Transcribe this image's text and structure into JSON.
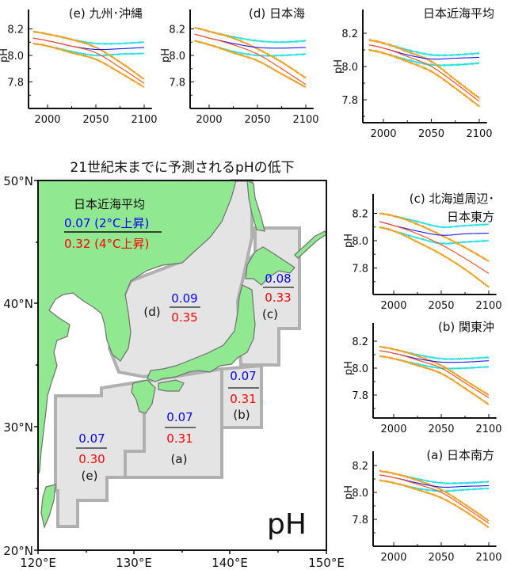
{
  "colors": {
    "land": "#90e890",
    "sea_region": "#e4e4e4",
    "region_border": "#b0b0b0",
    "coast": "#707070",
    "warming_2c": "#0000ff",
    "warming_4c": "#ff0000",
    "series_2c_mean": "#1a1aff",
    "series_2c_range": "#22e0e0",
    "series_4c_mean": "#ff4a1a",
    "series_4c_range": "#f0a020"
  },
  "map": {
    "title": "21世紀末までに予測されるpHの低下",
    "variable_label": "pH",
    "lat_labels": [
      "50°N",
      "40°N",
      "30°N",
      "20°N"
    ],
    "lon_labels": [
      "120°E",
      "130°E",
      "140°E",
      "150°E"
    ],
    "legend": {
      "title": "日本近海平均",
      "value_2c": "0.07 (2°C上昇)",
      "value_4c": "0.32 (4°C上昇)"
    },
    "regions": [
      {
        "id": "d",
        "label": "(d)",
        "value_2c": "0.09",
        "value_4c": "0.35"
      },
      {
        "id": "c",
        "label": "(c)",
        "value_2c": "0.08",
        "value_4c": "0.33"
      },
      {
        "id": "b",
        "label": "(b)",
        "value_2c": "0.07",
        "value_4c": "0.31"
      },
      {
        "id": "a",
        "label": "(a)",
        "value_2c": "0.07",
        "value_4c": "0.31"
      },
      {
        "id": "e",
        "label": "(e)",
        "value_2c": "0.07",
        "value_4c": "0.30"
      }
    ]
  },
  "chart_data": [
    {
      "id": "e",
      "type": "line",
      "title": "(e) 九州･沖縄",
      "title_line2": "",
      "ylabel": "pH",
      "x_ticks": [
        "2000",
        "2050",
        "2100"
      ],
      "y_ticks": [
        "8.2",
        "8.0",
        "7.8"
      ],
      "xlim": [
        1980,
        2108
      ],
      "ylim": [
        7.6,
        8.32
      ],
      "x": [
        1985,
        2000,
        2025,
        2050,
        2075,
        2100
      ],
      "series": [
        {
          "key": "lo2",
          "values": [
            8.09,
            8.07,
            8.03,
            8.0,
            8.01,
            8.015
          ]
        },
        {
          "key": "up2",
          "values": [
            8.18,
            8.16,
            8.12,
            8.09,
            8.09,
            8.1
          ]
        },
        {
          "key": "lo4",
          "values": [
            8.09,
            8.07,
            8.02,
            7.97,
            7.87,
            7.76
          ]
        },
        {
          "key": "up4",
          "values": [
            8.18,
            8.16,
            8.12,
            8.06,
            7.95,
            7.82
          ]
        },
        {
          "key": "mean2",
          "values": [
            8.13,
            8.11,
            8.07,
            8.045,
            8.05,
            8.06
          ]
        },
        {
          "key": "mean4",
          "values": [
            8.13,
            8.11,
            8.07,
            8.02,
            7.91,
            7.79
          ]
        }
      ]
    },
    {
      "id": "d",
      "type": "line",
      "title": "(d) 日本海",
      "title_line2": "",
      "ylabel": "pH",
      "x_ticks": [
        "2000",
        "2050",
        "2100"
      ],
      "y_ticks": [
        "8.2",
        "8.0",
        "7.8"
      ],
      "xlim": [
        1980,
        2108
      ],
      "ylim": [
        7.6,
        8.32
      ],
      "x": [
        1985,
        2000,
        2025,
        2050,
        2075,
        2100
      ],
      "series": [
        {
          "key": "lo2",
          "values": [
            8.11,
            8.08,
            8.03,
            8.0,
            8.0,
            8.01
          ]
        },
        {
          "key": "up2",
          "values": [
            8.21,
            8.18,
            8.14,
            8.11,
            8.1,
            8.11
          ]
        },
        {
          "key": "lo4",
          "values": [
            8.11,
            8.08,
            8.02,
            7.96,
            7.86,
            7.76
          ]
        },
        {
          "key": "up4",
          "values": [
            8.21,
            8.18,
            8.13,
            8.05,
            7.95,
            7.83
          ]
        },
        {
          "key": "mean2",
          "values": [
            8.16,
            8.13,
            8.09,
            8.06,
            8.055,
            8.06
          ]
        },
        {
          "key": "mean4",
          "values": [
            8.16,
            8.13,
            8.08,
            8.01,
            7.9,
            7.78
          ]
        }
      ]
    },
    {
      "id": "avg",
      "type": "line",
      "title": "日本近海平均",
      "title_line2": "",
      "ylabel": "pH",
      "x_ticks": [
        "2000",
        "2050",
        "2100"
      ],
      "y_ticks": [
        "8.2",
        "8.0",
        "7.8"
      ],
      "xlim": [
        1980,
        2108
      ],
      "ylim": [
        7.68,
        8.27
      ],
      "x": [
        1985,
        2000,
        2025,
        2050,
        2075,
        2100
      ],
      "series": [
        {
          "key": "lo2",
          "values": [
            8.1,
            8.08,
            8.04,
            8.01,
            8.01,
            8.02
          ]
        },
        {
          "key": "up2",
          "values": [
            8.16,
            8.14,
            8.1,
            8.07,
            8.07,
            8.08
          ]
        },
        {
          "key": "lo4",
          "values": [
            8.1,
            8.08,
            8.03,
            7.97,
            7.87,
            7.76
          ]
        },
        {
          "key": "up4",
          "values": [
            8.16,
            8.14,
            8.09,
            8.03,
            7.92,
            7.81
          ]
        },
        {
          "key": "mean2",
          "values": [
            8.13,
            8.11,
            8.07,
            8.045,
            8.05,
            8.055
          ]
        },
        {
          "key": "mean4",
          "values": [
            8.13,
            8.11,
            8.06,
            8.0,
            7.9,
            7.79
          ]
        }
      ]
    },
    {
      "id": "c",
      "type": "line",
      "title": "(c) 北海道周辺･",
      "title_line2": "日本東方",
      "ylabel": "pH",
      "x_ticks": [
        "2000",
        "2050",
        "2100"
      ],
      "y_ticks": [
        "8.2",
        "8.0",
        "7.8"
      ],
      "xlim": [
        1980,
        2108
      ],
      "ylim": [
        7.62,
        8.33
      ],
      "x": [
        1985,
        2000,
        2025,
        2050,
        2075,
        2100
      ],
      "series": [
        {
          "key": "lo2",
          "values": [
            8.1,
            8.07,
            8.02,
            7.98,
            7.99,
            8.0
          ]
        },
        {
          "key": "up2",
          "values": [
            8.2,
            8.18,
            8.14,
            8.1,
            8.11,
            8.12
          ]
        },
        {
          "key": "lo4",
          "values": [
            8.1,
            8.07,
            7.99,
            7.9,
            7.79,
            7.66
          ]
        },
        {
          "key": "up4",
          "values": [
            8.2,
            8.18,
            8.12,
            8.04,
            7.95,
            7.85
          ]
        },
        {
          "key": "mean2",
          "values": [
            8.14,
            8.11,
            8.07,
            8.04,
            8.05,
            8.055
          ]
        },
        {
          "key": "mean4",
          "values": [
            8.14,
            8.11,
            8.05,
            7.97,
            7.87,
            7.76
          ]
        }
      ]
    },
    {
      "id": "b",
      "type": "line",
      "title": "(b) 関東沖",
      "title_line2": "",
      "ylabel": "pH",
      "x_ticks": [
        "2000",
        "2050",
        "2100"
      ],
      "y_ticks": [
        "8.2",
        "8.0",
        "7.8"
      ],
      "xlim": [
        1980,
        2108
      ],
      "ylim": [
        7.63,
        8.33
      ],
      "x": [
        1985,
        2000,
        2025,
        2050,
        2075,
        2100
      ],
      "series": [
        {
          "key": "lo2",
          "values": [
            8.09,
            8.07,
            8.03,
            8.0,
            8.0,
            8.01
          ]
        },
        {
          "key": "up2",
          "values": [
            8.16,
            8.14,
            8.1,
            8.07,
            8.07,
            8.08
          ]
        },
        {
          "key": "lo4",
          "values": [
            8.09,
            8.07,
            8.02,
            7.96,
            7.85,
            7.73
          ]
        },
        {
          "key": "up4",
          "values": [
            8.16,
            8.14,
            8.09,
            8.02,
            7.91,
            7.8
          ]
        },
        {
          "key": "mean2",
          "values": [
            8.13,
            8.11,
            8.07,
            8.045,
            8.045,
            8.055
          ]
        },
        {
          "key": "mean4",
          "values": [
            8.13,
            8.11,
            8.06,
            8.0,
            7.89,
            7.78
          ]
        }
      ]
    },
    {
      "id": "a",
      "type": "line",
      "title": "(a) 日本南方",
      "title_line2": "",
      "ylabel": "pH",
      "x_ticks": [
        "2000",
        "2050",
        "2100"
      ],
      "y_ticks": [
        "8.2",
        "8.0",
        "7.8"
      ],
      "xlim": [
        1980,
        2108
      ],
      "ylim": [
        7.6,
        8.32
      ],
      "x": [
        1985,
        2000,
        2025,
        2050,
        2075,
        2100
      ],
      "series": [
        {
          "key": "lo2",
          "values": [
            8.09,
            8.07,
            8.03,
            8.01,
            8.02,
            8.03
          ]
        },
        {
          "key": "up2",
          "values": [
            8.16,
            8.14,
            8.1,
            8.07,
            8.07,
            8.08
          ]
        },
        {
          "key": "lo4",
          "values": [
            8.09,
            8.07,
            8.02,
            7.96,
            7.86,
            7.74
          ]
        },
        {
          "key": "up4",
          "values": [
            8.16,
            8.14,
            8.09,
            8.02,
            7.91,
            7.79
          ]
        },
        {
          "key": "mean2",
          "values": [
            8.13,
            8.11,
            8.07,
            8.04,
            8.045,
            8.05
          ]
        },
        {
          "key": "mean4",
          "values": [
            8.13,
            8.11,
            8.06,
            8.0,
            7.89,
            7.77
          ]
        }
      ]
    }
  ]
}
